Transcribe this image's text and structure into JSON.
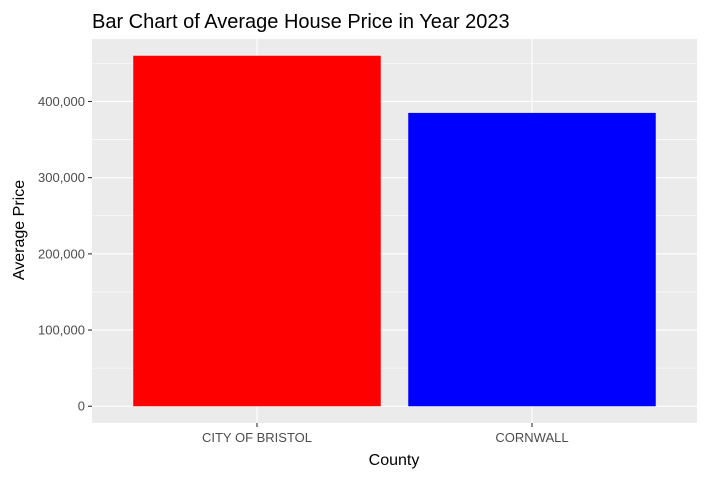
{
  "chart_data": {
    "type": "bar",
    "title": "Bar Chart of Average House Price in Year 2023",
    "xlabel": "County",
    "ylabel": "Average Price",
    "categories": [
      "CITY OF BRISTOL",
      "CORNWALL"
    ],
    "values": [
      460000,
      385000
    ],
    "colors": [
      "#ff0000",
      "#0000ff"
    ],
    "ylim": [
      -22000,
      482000
    ],
    "yticks": [
      0,
      100000,
      200000,
      300000,
      400000
    ],
    "ytick_labels": [
      "0",
      "100,000",
      "200,000",
      "300,000",
      "400,000"
    ],
    "grid": true,
    "legend": "none",
    "panel_background": "#ebebeb",
    "grid_color": "#ffffff"
  }
}
